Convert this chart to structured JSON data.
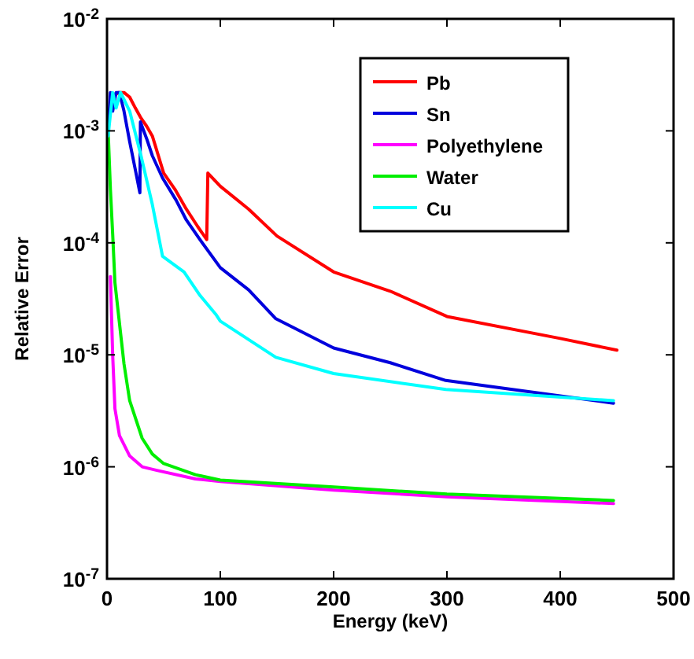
{
  "chart_data": {
    "type": "line",
    "xlabel": "Energy (keV)",
    "ylabel": "Relative Error",
    "log": "y",
    "xlim": [
      0,
      500
    ],
    "xticks": [
      0,
      100,
      200,
      300,
      400,
      500
    ],
    "ylim": [
      1e-07,
      0.01
    ],
    "yticks": [
      {
        "value": 1e-07,
        "label": "10$^{-7}$"
      },
      {
        "value": 1e-06,
        "label": "10$^{-6}$"
      },
      {
        "value": 1e-05,
        "label": "10$^{-5}$"
      },
      {
        "value": 0.0001,
        "label": "10$^{-4}$"
      },
      {
        "value": 0.001,
        "label": "10$^{-3}$"
      },
      {
        "value": 0.01,
        "label": "10$^{-2}$"
      }
    ],
    "legend": "top right",
    "grid": false,
    "line_style": "solid",
    "marker": "none",
    "series": [
      {
        "name": "Pb",
        "color": "#ff0000",
        "x": [
          5,
          10,
          15,
          20,
          25,
          30,
          35,
          40,
          50,
          60,
          70,
          80,
          88,
          89,
          100,
          125,
          150,
          200,
          250,
          300,
          400,
          450
        ],
        "values": [
          0.002,
          0.0022,
          0.0022,
          0.002,
          0.0016,
          0.0013,
          0.0011,
          0.0009,
          0.00042,
          0.0003,
          0.0002,
          0.00014,
          0.000107,
          0.00042,
          0.00032,
          0.0002,
          0.000115,
          5.5e-05,
          3.7e-05,
          2.2e-05,
          1.4e-05,
          1.1e-05
        ]
      },
      {
        "name": "Sn",
        "color": "#0000dd",
        "x": [
          1,
          3,
          5,
          8,
          11,
          15,
          20,
          25,
          29,
          29.5,
          35,
          40,
          49,
          61,
          70,
          82,
          100,
          125,
          149,
          200,
          250,
          299,
          400,
          447
        ],
        "values": [
          0.001,
          0.0022,
          0.0015,
          0.0022,
          0.0022,
          0.0015,
          0.0008,
          0.00045,
          0.00028,
          0.0012,
          0.00085,
          0.0006,
          0.00038,
          0.00024,
          0.00016,
          0.000107,
          6e-05,
          3.8e-05,
          2.1e-05,
          1.15e-05,
          8.5e-06,
          5.9e-06,
          4.3e-06,
          3.7e-06
        ]
      },
      {
        "name": "Polyethylene",
        "color": "#ff00ff",
        "x": [
          3,
          5,
          7,
          11,
          20,
          31,
          44,
          78,
          100,
          200,
          300,
          447
        ],
        "values": [
          5e-05,
          1e-05,
          3.3e-06,
          1.9e-06,
          1.25e-06,
          1e-06,
          9.3e-07,
          7.8e-07,
          7.4e-07,
          6.2e-07,
          5.4e-07,
          4.7e-07
        ]
      },
      {
        "name": "Water",
        "color": "#00ee00",
        "x": [
          1,
          3,
          5,
          7,
          15,
          20,
          31,
          40,
          50,
          78,
          100,
          200,
          300,
          447
        ],
        "values": [
          0.001,
          0.0003,
          0.00012,
          4.4e-05,
          8.3e-06,
          3.9e-06,
          1.8e-06,
          1.3e-06,
          1.07e-06,
          8.5e-07,
          7.6e-07,
          6.6e-07,
          5.7e-07,
          5e-07
        ]
      },
      {
        "name": "Cu",
        "color": "#00ffff",
        "x": [
          1,
          5,
          8,
          12,
          20,
          30,
          40,
          49,
          68,
          82,
          96,
          100,
          149,
          200,
          299,
          447
        ],
        "values": [
          0.0009,
          0.0022,
          0.0016,
          0.0022,
          0.0015,
          0.0006,
          0.00022,
          7.6e-05,
          5.5e-05,
          3.4e-05,
          2.3e-05,
          2e-05,
          9.5e-06,
          6.8e-06,
          4.9e-06,
          3.9e-06
        ]
      }
    ]
  }
}
